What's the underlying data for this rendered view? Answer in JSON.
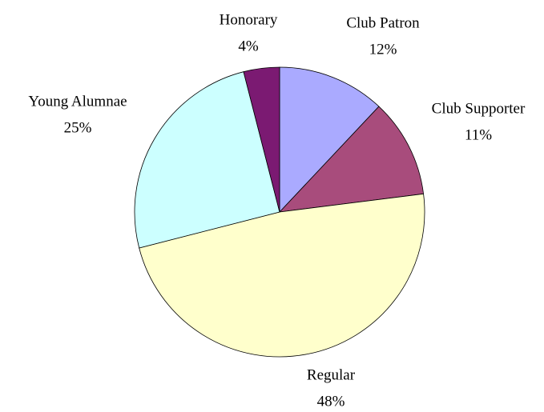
{
  "chart_data": {
    "type": "pie",
    "categories": [
      "Club Patron",
      "Club Supporter",
      "Regular",
      "Young Alumnae",
      "Honorary"
    ],
    "values": [
      12,
      11,
      48,
      25,
      4
    ],
    "value_labels": [
      "12%",
      "11%",
      "48%",
      "25%",
      "4%"
    ],
    "colors": [
      "#aaaaff",
      "#a84c7c",
      "#ffffcc",
      "#ccffff",
      "#7b1a72"
    ]
  }
}
